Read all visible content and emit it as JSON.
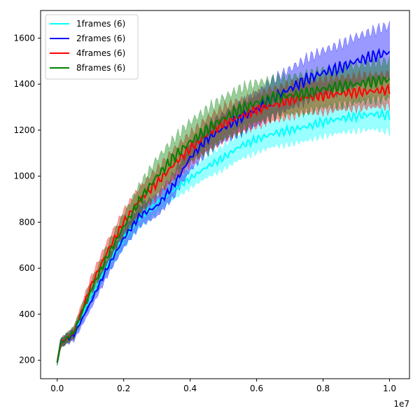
{
  "chart_data": {
    "type": "line",
    "title": "",
    "xlabel": "",
    "ylabel": "",
    "x_offset_label": "1e7",
    "xlim": [
      -0.05,
      1.06
    ],
    "ylim": [
      120,
      1720
    ],
    "xticks": [
      0.0,
      0.2,
      0.4,
      0.6,
      0.8,
      1.0
    ],
    "xtick_labels": [
      "0.0",
      "0.2",
      "0.4",
      "0.6",
      "0.8",
      "1.0"
    ],
    "yticks": [
      200,
      400,
      600,
      800,
      1000,
      1200,
      1400,
      1600
    ],
    "ytick_labels": [
      "200",
      "400",
      "600",
      "800",
      "1000",
      "1200",
      "1400",
      "1600"
    ],
    "grid": false,
    "legend_position": "top-left",
    "series": [
      {
        "name": "1frames (6)",
        "color": "#00ffff",
        "x": [
          0.0,
          0.01,
          0.02,
          0.05,
          0.1,
          0.15,
          0.2,
          0.25,
          0.3,
          0.35,
          0.4,
          0.45,
          0.5,
          0.55,
          0.6,
          0.65,
          0.7,
          0.75,
          0.8,
          0.85,
          0.9,
          0.95,
          1.0
        ],
        "y": [
          190,
          275,
          285,
          320,
          470,
          610,
          730,
          820,
          880,
          940,
          990,
          1040,
          1080,
          1130,
          1160,
          1185,
          1200,
          1215,
          1235,
          1250,
          1260,
          1270,
          1265
        ],
        "band": [
          15,
          20,
          20,
          25,
          30,
          35,
          40,
          40,
          40,
          40,
          40,
          45,
          50,
          55,
          55,
          55,
          60,
          60,
          60,
          60,
          60,
          65,
          70
        ]
      },
      {
        "name": "2frames (6)",
        "color": "#0000ff",
        "x": [
          0.0,
          0.01,
          0.02,
          0.05,
          0.1,
          0.15,
          0.2,
          0.25,
          0.3,
          0.35,
          0.4,
          0.45,
          0.5,
          0.55,
          0.6,
          0.65,
          0.7,
          0.75,
          0.8,
          0.85,
          0.9,
          0.95,
          1.0
        ],
        "y": [
          190,
          275,
          285,
          310,
          450,
          600,
          730,
          830,
          870,
          960,
          1080,
          1160,
          1210,
          1250,
          1290,
          1340,
          1380,
          1420,
          1450,
          1470,
          1500,
          1520,
          1540
        ],
        "band": [
          15,
          20,
          20,
          25,
          30,
          35,
          40,
          45,
          45,
          50,
          55,
          60,
          60,
          65,
          70,
          80,
          85,
          90,
          95,
          100,
          105,
          110,
          115
        ]
      },
      {
        "name": "4frames (6)",
        "color": "#ff0000",
        "x": [
          0.0,
          0.01,
          0.02,
          0.05,
          0.1,
          0.15,
          0.2,
          0.25,
          0.3,
          0.35,
          0.4,
          0.45,
          0.5,
          0.55,
          0.6,
          0.65,
          0.7,
          0.75,
          0.8,
          0.85,
          0.9,
          0.95,
          1.0
        ],
        "y": [
          190,
          275,
          285,
          320,
          520,
          670,
          800,
          900,
          970,
          1050,
          1120,
          1180,
          1230,
          1260,
          1290,
          1310,
          1330,
          1345,
          1350,
          1360,
          1365,
          1370,
          1375
        ],
        "band": [
          15,
          20,
          20,
          25,
          35,
          45,
          50,
          55,
          60,
          65,
          65,
          70,
          70,
          70,
          70,
          70,
          70,
          70,
          70,
          70,
          70,
          70,
          70
        ]
      },
      {
        "name": "8frames (6)",
        "color": "#008000",
        "x": [
          0.0,
          0.01,
          0.02,
          0.05,
          0.1,
          0.15,
          0.2,
          0.25,
          0.3,
          0.35,
          0.4,
          0.45,
          0.5,
          0.55,
          0.6,
          0.65,
          0.7,
          0.75,
          0.8,
          0.85,
          0.9,
          0.95,
          1.0
        ],
        "y": [
          190,
          275,
          285,
          320,
          500,
          650,
          780,
          900,
          1000,
          1080,
          1150,
          1200,
          1250,
          1290,
          1320,
          1340,
          1350,
          1360,
          1380,
          1390,
          1400,
          1410,
          1420
        ],
        "band": [
          15,
          20,
          20,
          25,
          35,
          45,
          55,
          65,
          75,
          80,
          85,
          90,
          90,
          90,
          85,
          80,
          80,
          80,
          80,
          80,
          80,
          80,
          80
        ]
      }
    ]
  }
}
